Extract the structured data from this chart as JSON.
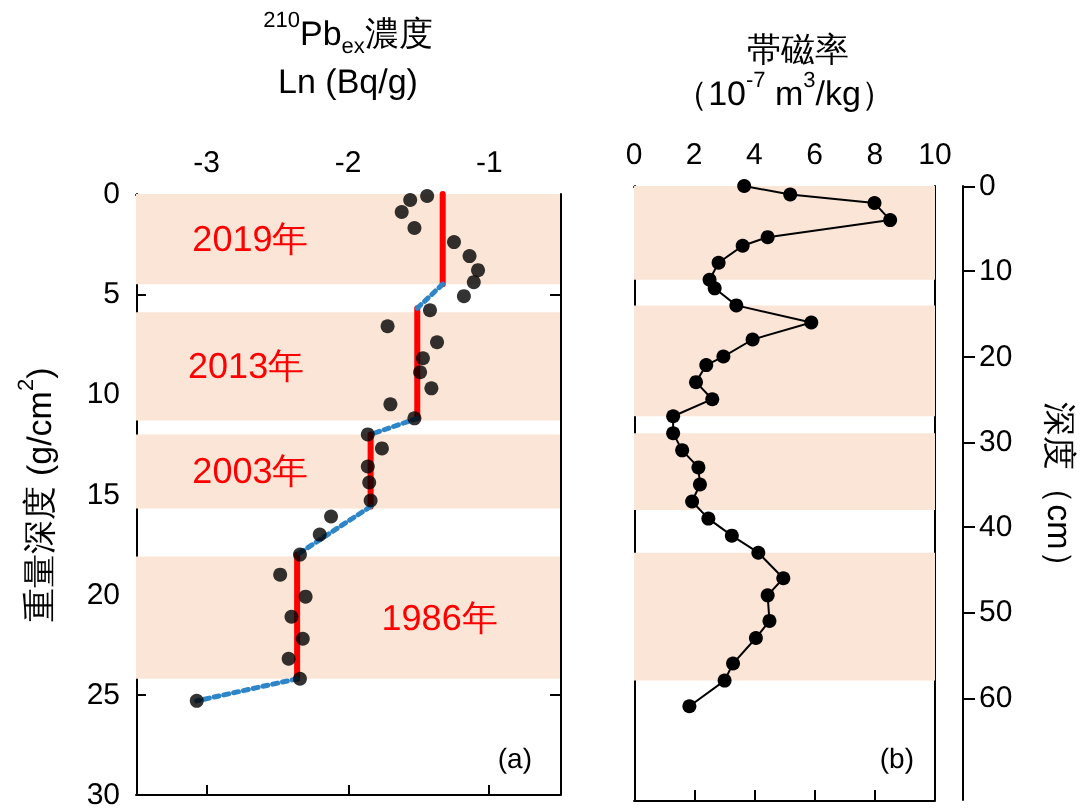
{
  "chart_data": [
    {
      "type": "scatter",
      "xlabel": "$^{210}$Pb$_{ex}$濃度\nLn (Bq/g)",
      "ylabel": "重量深度 (g/cm$^{2}$)",
      "xlim": [
        -3.5,
        -0.5
      ],
      "xticks": [
        -3,
        -2,
        -1
      ],
      "ylim": [
        30,
        0
      ],
      "yticks": [
        0,
        5,
        10,
        15,
        20,
        25,
        30
      ],
      "series": [
        {
          "color": "#000000",
          "marker": "circle",
          "x": [
            -1.44,
            -1.56,
            -1.62,
            -1.53,
            -1.25,
            -1.14,
            -1.08,
            -1.11,
            -1.18,
            -1.42,
            -1.72,
            -1.37,
            -1.47,
            -1.49,
            -1.41,
            -1.7,
            -1.53,
            -1.86,
            -1.76,
            -1.86,
            -1.85,
            -1.84,
            -2.12,
            -2.2,
            -2.34,
            -2.48,
            -2.3,
            -2.4,
            -2.32,
            -2.42,
            -2.34,
            -3.07
          ],
          "values": [
            0.1,
            0.3,
            0.9,
            1.7,
            2.4,
            3.1,
            3.8,
            4.4,
            5.1,
            5.8,
            6.6,
            7.4,
            8.2,
            8.9,
            9.7,
            10.5,
            11.2,
            12.0,
            12.7,
            13.6,
            14.4,
            15.3,
            16.1,
            17.0,
            18.0,
            19.0,
            20.1,
            21.1,
            22.2,
            23.2,
            24.2,
            25.3
          ]
        },
        {
          "type": "line",
          "color": "#ff0000",
          "marker": "none",
          "line_style": "solid",
          "x": [
            -1.33,
            -1.33
          ],
          "values": [
            0,
            4.5
          ]
        },
        {
          "type": "line",
          "color": "#ff0000",
          "marker": "none",
          "line_style": "solid",
          "x": [
            -1.51,
            -1.51
          ],
          "values": [
            5.7,
            11.2
          ]
        },
        {
          "type": "line",
          "color": "#ff0000",
          "marker": "none",
          "line_style": "solid",
          "x": [
            -1.84,
            -1.84
          ],
          "values": [
            12.0,
            15.6
          ]
        },
        {
          "type": "line",
          "color": "#ff0000",
          "marker": "none",
          "line_style": "solid",
          "x": [
            -2.36,
            -2.36
          ],
          "values": [
            18.0,
            24.2
          ]
        },
        {
          "type": "line",
          "color": "#2e86c8",
          "marker": "none",
          "line_style": "dotted",
          "x": [
            -1.33,
            -1.51
          ],
          "values": [
            4.5,
            5.7
          ]
        },
        {
          "type": "line",
          "color": "#2e86c8",
          "marker": "none",
          "line_style": "dotted",
          "x": [
            -1.51,
            -1.84
          ],
          "values": [
            11.2,
            12.0
          ]
        },
        {
          "type": "line",
          "color": "#2e86c8",
          "marker": "none",
          "line_style": "dotted",
          "x": [
            -1.84,
            -2.36
          ],
          "values": [
            15.6,
            18.0
          ]
        },
        {
          "type": "line",
          "color": "#2e86c8",
          "marker": "none",
          "line_style": "dotted",
          "x": [
            -2.36,
            -3.07
          ],
          "values": [
            24.2,
            25.3
          ]
        }
      ],
      "bands": [
        {
          "axis": "y",
          "from": 0,
          "to": 4.5,
          "color": "#fbe5d6",
          "label": "2019年"
        },
        {
          "axis": "y",
          "from": 5.9,
          "to": 11.3,
          "color": "#fbe5d6",
          "label": "2013年"
        },
        {
          "axis": "y",
          "from": 12.0,
          "to": 15.7,
          "color": "#fbe5d6",
          "label": "2003年"
        },
        {
          "axis": "y",
          "from": 18.1,
          "to": 24.2,
          "color": "#fbe5d6",
          "label": "1986年"
        }
      ],
      "annotations": [
        "(a)"
      ]
    },
    {
      "type": "line",
      "title": "帯磁率",
      "xlabel": "（10$^{-7}$ m$^{3}$/kg）",
      "ylabel": "深度（cm）",
      "xlim": [
        0,
        10
      ],
      "xticks": [
        0,
        2,
        4,
        6,
        8,
        10
      ],
      "ylim": [
        72,
        0
      ],
      "yticks": [
        0,
        10,
        20,
        30,
        40,
        50,
        60
      ],
      "series": [
        {
          "color": "#000000",
          "marker": "circle",
          "line_style": "solid",
          "x": [
            3.66,
            5.19,
            7.99,
            8.51,
            4.44,
            3.61,
            2.81,
            2.51,
            2.68,
            3.4,
            5.89,
            3.94,
            2.97,
            2.4,
            2.06,
            2.6,
            1.3,
            1.3,
            1.6,
            2.14,
            2.19,
            1.93,
            2.47,
            3.25,
            4.13,
            4.96,
            4.44,
            4.5,
            4.05,
            3.29,
            3.01,
            1.84
          ],
          "values": [
            0,
            1,
            2,
            4,
            6,
            7,
            9,
            11,
            12,
            14,
            16,
            18,
            20,
            21,
            23,
            25,
            27,
            29,
            31,
            33,
            35,
            37,
            39,
            41,
            43,
            46,
            48,
            51,
            53,
            56,
            58,
            61
          ]
        }
      ],
      "bands": [
        {
          "axis": "y",
          "from": 0,
          "to": 11,
          "color": "#fbe5d6"
        },
        {
          "axis": "y",
          "from": 14,
          "to": 27,
          "color": "#fbe5d6"
        },
        {
          "axis": "y",
          "from": 29,
          "to": 38,
          "color": "#fbe5d6"
        },
        {
          "axis": "y",
          "from": 43,
          "to": 58,
          "color": "#fbe5d6"
        }
      ],
      "annotations": [
        "(b)"
      ]
    }
  ]
}
